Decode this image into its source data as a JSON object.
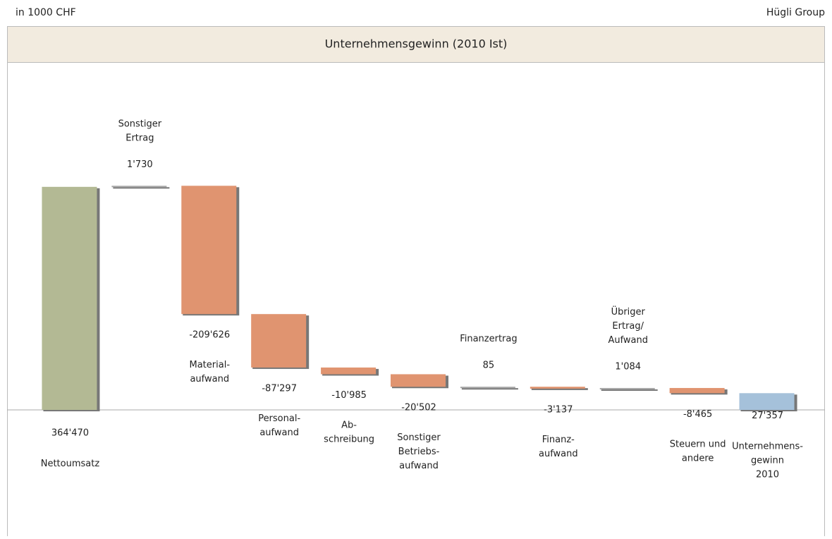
{
  "header": {
    "unit": "in 1000 CHF",
    "company": "Hügli Group"
  },
  "chart_data": {
    "type": "waterfall",
    "title": "Unternehmensgewinn (2010 Ist)",
    "categories": [
      [
        "Nettoumsatz"
      ],
      [
        "Sonstiger",
        "Ertrag"
      ],
      [
        "Material-",
        "aufwand"
      ],
      [
        "Personal-",
        "aufwand"
      ],
      [
        "Ab-",
        "schreibung"
      ],
      [
        "Sonstiger",
        "Betriebs-",
        "aufwand"
      ],
      [
        "Finanzertrag"
      ],
      [
        "Finanz-",
        "aufwand"
      ],
      [
        "Übriger",
        "Ertrag/",
        "Aufwand"
      ],
      [
        "Steuern und",
        "andere"
      ],
      [
        "Unternehmens-",
        "gewinn",
        "2010"
      ]
    ],
    "values": [
      364470,
      1730,
      -209626,
      -87297,
      -10985,
      -20502,
      85,
      -3137,
      1084,
      -8465,
      27357
    ],
    "value_labels": [
      "364'470",
      "1'730",
      "-209'626",
      "-87'297",
      "-10'985",
      "-20'502",
      "85",
      "-3'137",
      "1'084",
      "-8'465",
      "27'357"
    ],
    "measure": [
      "absolute",
      "relative",
      "relative",
      "relative",
      "relative",
      "relative",
      "relative",
      "relative",
      "relative",
      "relative",
      "total"
    ],
    "colors": [
      "#b3b994",
      "#a6a6a6",
      "#e09470",
      "#e09470",
      "#e09470",
      "#e09470",
      "#a6a6a6",
      "#e09470",
      "#a6a6a6",
      "#e09470",
      "#a5c1da"
    ],
    "ylim": [
      -204000,
      566000
    ]
  }
}
